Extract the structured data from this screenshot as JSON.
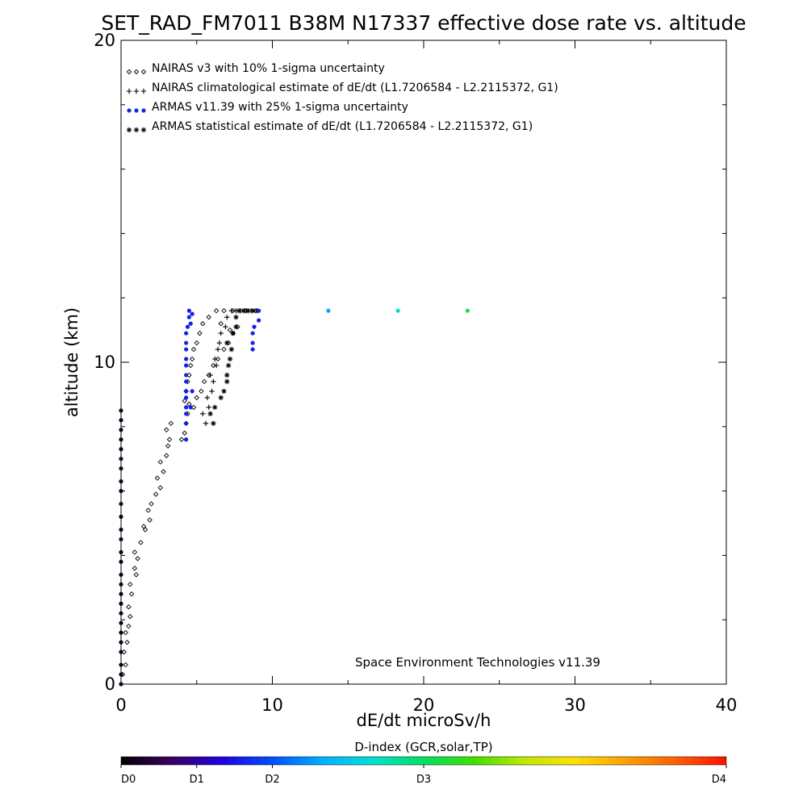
{
  "chart_data": {
    "type": "scatter",
    "title": "SET_RAD_FM7011  B38M N17337 effective dose rate vs. altitude",
    "xlabel": "dE/dt microSv/h",
    "ylabel": "altitude (km)",
    "xlim": [
      0,
      40
    ],
    "ylim": [
      0,
      20
    ],
    "xticks": [
      0,
      10,
      20,
      30,
      40
    ],
    "yticks": [
      0,
      10,
      20
    ],
    "x_tick_labels": [
      "0",
      "10",
      "20",
      "30",
      "40"
    ],
    "y_tick_labels": [
      "0",
      "10",
      "20"
    ],
    "y_minor_step": 2,
    "x_minor_step": 5,
    "grid": false,
    "legend_position": "top-left",
    "credit": "Space Environment Technologies v11.39",
    "legend": [
      {
        "name": "NAIRAS v3 with 10% 1-sigma uncertainty",
        "marker": "diamond",
        "color": "#000000"
      },
      {
        "name": "NAIRAS climatological estimate of dE/dt (L1.7206584 - L2.2115372, G1)",
        "marker": "plus",
        "color": "#000000"
      },
      {
        "name": "ARMAS v11.39 with 25% 1-sigma uncertainty",
        "marker": "dot",
        "color": "#1030d0"
      },
      {
        "name": "ARMAS statistical estimate of dE/dt (L1.7206584 - L2.2115372, G1)",
        "marker": "asterisk",
        "color": "#000000"
      }
    ],
    "series": [
      {
        "name": "NAIRAS v3 with 10% 1-sigma uncertainty",
        "marker": "diamond",
        "points": [
          [
            0.1,
            0.3
          ],
          [
            0.3,
            0.6
          ],
          [
            0.2,
            1.0
          ],
          [
            0.4,
            1.3
          ],
          [
            0.3,
            1.6
          ],
          [
            0.5,
            1.8
          ],
          [
            0.6,
            2.1
          ],
          [
            0.5,
            2.4
          ],
          [
            0.7,
            2.8
          ],
          [
            0.6,
            3.1
          ],
          [
            1.0,
            3.4
          ],
          [
            0.9,
            3.6
          ],
          [
            1.1,
            3.9
          ],
          [
            0.9,
            4.1
          ],
          [
            1.3,
            4.4
          ],
          [
            1.6,
            4.8
          ],
          [
            1.5,
            4.9
          ],
          [
            1.9,
            5.1
          ],
          [
            1.8,
            5.4
          ],
          [
            2.0,
            5.6
          ],
          [
            2.3,
            5.9
          ],
          [
            2.6,
            6.1
          ],
          [
            2.4,
            6.4
          ],
          [
            2.8,
            6.6
          ],
          [
            2.6,
            6.9
          ],
          [
            3.0,
            7.1
          ],
          [
            3.1,
            7.4
          ],
          [
            3.2,
            7.6
          ],
          [
            3.0,
            7.9
          ],
          [
            3.3,
            8.1
          ],
          [
            4.0,
            7.6
          ],
          [
            4.2,
            7.8
          ],
          [
            4.3,
            8.1
          ],
          [
            4.4,
            8.4
          ],
          [
            4.5,
            8.7
          ],
          [
            4.8,
            8.6
          ],
          [
            5.0,
            8.9
          ],
          [
            5.3,
            9.1
          ],
          [
            5.5,
            9.4
          ],
          [
            5.8,
            9.6
          ],
          [
            6.1,
            9.9
          ],
          [
            6.4,
            10.1
          ],
          [
            6.8,
            10.4
          ],
          [
            7.1,
            10.6
          ],
          [
            7.4,
            10.9
          ],
          [
            7.7,
            11.1
          ],
          [
            5.2,
            10.9
          ],
          [
            5.0,
            10.6
          ],
          [
            4.8,
            10.4
          ],
          [
            4.7,
            10.1
          ],
          [
            4.6,
            9.9
          ],
          [
            4.5,
            9.6
          ],
          [
            4.4,
            9.4
          ],
          [
            4.3,
            9.1
          ],
          [
            4.2,
            8.8
          ],
          [
            5.4,
            11.2
          ],
          [
            5.8,
            11.4
          ],
          [
            6.3,
            11.6
          ],
          [
            6.8,
            11.6
          ],
          [
            7.4,
            11.6
          ],
          [
            8.2,
            11.6
          ],
          [
            8.9,
            11.6
          ],
          [
            6.6,
            11.2
          ],
          [
            7.2,
            11.0
          ]
        ]
      },
      {
        "name": "NAIRAS climatological estimate of dE/dt (L1.7206584 - L2.2115372, G1)",
        "marker": "plus",
        "points": [
          [
            5.6,
            8.1
          ],
          [
            5.4,
            8.4
          ],
          [
            5.8,
            8.6
          ],
          [
            5.7,
            8.9
          ],
          [
            6.0,
            9.1
          ],
          [
            6.1,
            9.4
          ],
          [
            5.9,
            9.6
          ],
          [
            6.3,
            9.9
          ],
          [
            6.2,
            10.1
          ],
          [
            6.4,
            10.4
          ],
          [
            6.5,
            10.6
          ],
          [
            6.6,
            10.9
          ],
          [
            6.9,
            11.1
          ],
          [
            7.0,
            11.4
          ],
          [
            7.3,
            11.6
          ],
          [
            7.6,
            11.6
          ],
          [
            7.9,
            11.6
          ],
          [
            8.3,
            11.6
          ],
          [
            8.6,
            11.6
          ]
        ]
      },
      {
        "name": "ARMAS statistical estimate of dE/dt (L1.7206584 - L2.2115372, G1)",
        "marker": "asterisk",
        "points": [
          [
            6.1,
            8.1
          ],
          [
            5.9,
            8.4
          ],
          [
            6.2,
            8.6
          ],
          [
            6.6,
            8.9
          ],
          [
            6.8,
            9.1
          ],
          [
            7.0,
            9.4
          ],
          [
            7.0,
            9.6
          ],
          [
            7.1,
            9.9
          ],
          [
            7.2,
            10.1
          ],
          [
            7.3,
            10.4
          ],
          [
            7.0,
            10.6
          ],
          [
            7.4,
            10.9
          ],
          [
            7.6,
            11.1
          ],
          [
            7.6,
            11.4
          ],
          [
            7.8,
            11.6
          ],
          [
            8.1,
            11.6
          ],
          [
            8.4,
            11.6
          ],
          [
            8.7,
            11.6
          ],
          [
            9.0,
            11.6
          ]
        ]
      },
      {
        "name": "ARMAS v11.39 with 25% 1-sigma uncertainty",
        "marker": "dot",
        "points": [
          [
            0.0,
            0.0,
            0.1
          ],
          [
            0.0,
            0.3,
            0.1
          ],
          [
            0.0,
            0.6,
            0.1
          ],
          [
            0.0,
            1.0,
            0.1
          ],
          [
            0.0,
            1.3,
            0.1
          ],
          [
            0.0,
            1.6,
            0.1
          ],
          [
            0.0,
            1.9,
            0.1
          ],
          [
            0.0,
            2.2,
            0.1
          ],
          [
            0.0,
            2.5,
            0.1
          ],
          [
            0.0,
            2.8,
            0.1
          ],
          [
            0.0,
            3.1,
            0.1
          ],
          [
            0.0,
            3.4,
            0.1
          ],
          [
            0.0,
            3.8,
            0.1
          ],
          [
            0.0,
            4.1,
            0.1
          ],
          [
            0.0,
            4.5,
            0.1
          ],
          [
            0.0,
            4.8,
            0.1
          ],
          [
            0.0,
            5.2,
            0.1
          ],
          [
            0.0,
            5.6,
            0.1
          ],
          [
            0.0,
            6.0,
            0.1
          ],
          [
            0.0,
            6.3,
            0.1
          ],
          [
            0.0,
            6.7,
            0.1
          ],
          [
            0.0,
            7.0,
            0.1
          ],
          [
            0.0,
            7.3,
            0.1
          ],
          [
            0.0,
            7.6,
            0.1
          ],
          [
            0.0,
            7.9,
            0.1
          ],
          [
            0.0,
            8.2,
            0.1
          ],
          [
            0.0,
            8.5,
            0.1
          ],
          [
            4.3,
            7.6,
            0.8
          ],
          [
            4.3,
            8.1,
            0.8
          ],
          [
            4.3,
            8.4,
            0.8
          ],
          [
            4.3,
            8.6,
            0.8
          ],
          [
            4.3,
            8.9,
            0.8
          ],
          [
            4.3,
            9.1,
            0.8
          ],
          [
            4.3,
            9.4,
            0.8
          ],
          [
            4.3,
            9.6,
            0.8
          ],
          [
            4.3,
            9.9,
            0.8
          ],
          [
            4.3,
            10.1,
            0.8
          ],
          [
            4.3,
            10.4,
            0.8
          ],
          [
            4.3,
            10.6,
            0.8
          ],
          [
            4.3,
            10.9,
            0.8
          ],
          [
            4.4,
            11.1,
            0.8
          ],
          [
            4.5,
            11.4,
            0.8
          ],
          [
            4.5,
            11.6,
            0.8
          ],
          [
            4.6,
            8.6,
            0.8
          ],
          [
            4.7,
            9.1,
            0.8
          ],
          [
            4.6,
            11.2,
            0.8
          ],
          [
            4.7,
            11.5,
            0.8
          ],
          [
            8.7,
            10.4,
            0.8
          ],
          [
            8.7,
            10.6,
            0.8
          ],
          [
            8.7,
            10.9,
            0.8
          ],
          [
            8.8,
            11.1,
            0.8
          ],
          [
            9.1,
            11.3,
            0.8
          ],
          [
            9.1,
            11.6,
            0.8
          ],
          [
            13.7,
            11.6,
            1.3
          ],
          [
            18.3,
            11.6,
            1.7
          ],
          [
            22.9,
            11.6,
            2.1
          ]
        ]
      }
    ],
    "colorbar": {
      "title": "D-index (GCR,solar,TP)",
      "range": [
        0,
        4
      ],
      "ticks": [
        {
          "value": 0,
          "label": "D0"
        },
        {
          "value": 0.5,
          "label": "D1"
        },
        {
          "value": 1.0,
          "label": "D2"
        },
        {
          "value": 2.0,
          "label": "D3"
        },
        {
          "value": 4.0,
          "label": "D4"
        }
      ],
      "colormap": [
        "#000000",
        "#3a0062",
        "#2000e0",
        "#0050ff",
        "#00b0ff",
        "#00e0d0",
        "#00e060",
        "#40e000",
        "#c0e800",
        "#ffe000",
        "#ffa000",
        "#ff6000",
        "#ff1000"
      ]
    }
  }
}
